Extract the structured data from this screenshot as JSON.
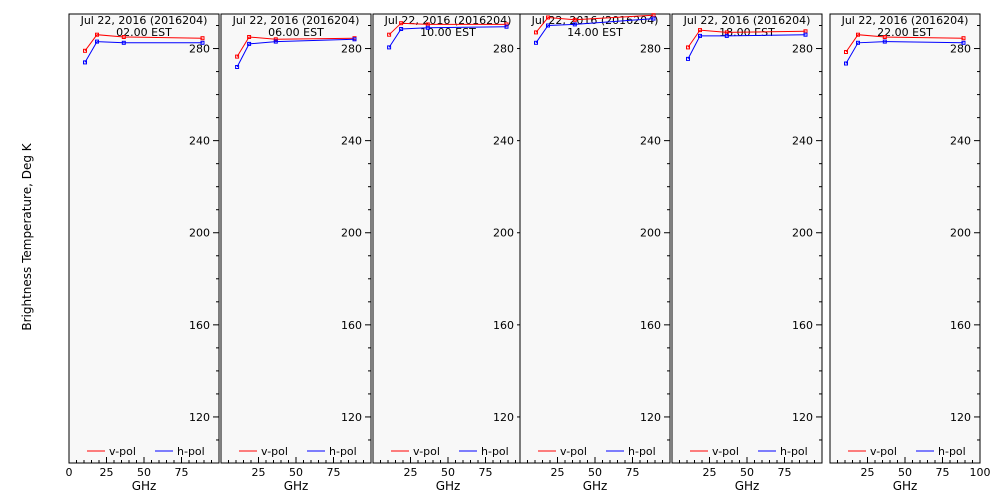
{
  "chart_data": {
    "type": "line",
    "ylabel": "Brightness Temperature, Deg K",
    "xlabel": "GHz",
    "xlim": [
      0,
      100
    ],
    "ylim": [
      100,
      295
    ],
    "xticks": [
      0,
      25,
      50,
      75,
      100
    ],
    "xtick_labels": [
      "0",
      "25",
      "50",
      "75",
      "100"
    ],
    "yticks": [
      120,
      160,
      200,
      240,
      280
    ],
    "ytick_labels": [
      "120",
      "160",
      "200",
      "240",
      "280"
    ],
    "legend": {
      "placement": "bottom",
      "entries": [
        "v-pol",
        "h-pol"
      ]
    },
    "series_colors": {
      "v-pol": "#ff0000",
      "h-pol": "#0000ff"
    },
    "panels": [
      {
        "title": "Jul 22, 2016 (2016204)",
        "subtitle": "02.00 EST",
        "series": [
          {
            "name": "v-pol",
            "x": [
              10.7,
              18.7,
              36.5,
              89
            ],
            "y": [
              279,
              286,
              285,
              284.5
            ]
          },
          {
            "name": "h-pol",
            "x": [
              10.7,
              18.7,
              36.5,
              89
            ],
            "y": [
              274,
              283,
              282.5,
              282.5
            ]
          }
        ]
      },
      {
        "title": "Jul 22, 2016 (2016204)",
        "subtitle": "06.00 EST",
        "series": [
          {
            "name": "v-pol",
            "x": [
              10.7,
              18.7,
              36.5,
              89
            ],
            "y": [
              276.5,
              285,
              284,
              284.5
            ]
          },
          {
            "name": "h-pol",
            "x": [
              10.7,
              18.7,
              36.5,
              89
            ],
            "y": [
              272,
              282,
              283,
              284
            ]
          }
        ]
      },
      {
        "title": "Jul 22, 2016 (2016204)",
        "subtitle": "10.00 EST",
        "series": [
          {
            "name": "v-pol",
            "x": [
              10.7,
              18.7,
              36.5,
              89
            ],
            "y": [
              286,
              291,
              290.5,
              290.5
            ]
          },
          {
            "name": "h-pol",
            "x": [
              10.7,
              18.7,
              36.5,
              89
            ],
            "y": [
              280.5,
              288.5,
              289,
              289.5
            ]
          }
        ]
      },
      {
        "title": "Jul 22, 2016 (2016204)",
        "subtitle": "14.00 EST",
        "series": [
          {
            "name": "v-pol",
            "x": [
              10.7,
              18.7,
              36.5,
              89
            ],
            "y": [
              287,
              293.5,
              292.5,
              294.5
            ]
          },
          {
            "name": "h-pol",
            "x": [
              10.7,
              18.7,
              36.5,
              89
            ],
            "y": [
              282.5,
              290,
              290.5,
              293
            ]
          }
        ]
      },
      {
        "title": "Jul 22, 2016 (2016204)",
        "subtitle": "18.00 EST",
        "series": [
          {
            "name": "v-pol",
            "x": [
              10.7,
              18.7,
              36.5,
              89
            ],
            "y": [
              280.5,
              288,
              287,
              287.5
            ]
          },
          {
            "name": "h-pol",
            "x": [
              10.7,
              18.7,
              36.5,
              89
            ],
            "y": [
              275.5,
              285.5,
              285.5,
              286
            ]
          }
        ]
      },
      {
        "title": "Jul 22, 2016 (2016204)",
        "subtitle": "22.00 EST",
        "series": [
          {
            "name": "v-pol",
            "x": [
              10.7,
              18.7,
              36.5,
              89
            ],
            "y": [
              278.5,
              286,
              285,
              284.5
            ]
          },
          {
            "name": "h-pol",
            "x": [
              10.7,
              18.7,
              36.5,
              89
            ],
            "y": [
              273.5,
              282.5,
              283,
              282.5
            ]
          }
        ]
      }
    ]
  }
}
